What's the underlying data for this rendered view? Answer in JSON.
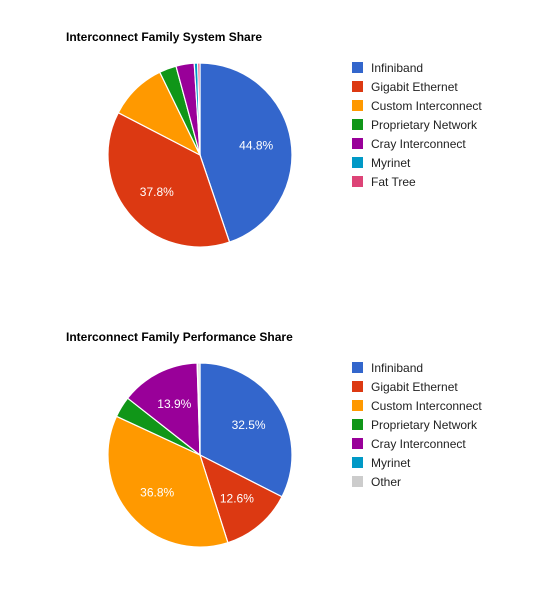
{
  "chart_data": [
    {
      "type": "pie",
      "title": "Interconnect Family System Share",
      "labels": [
        "Infiniband",
        "Gigabit Ethernet",
        "Custom Interconnect",
        "Proprietary Network",
        "Cray Interconnect",
        "Myrinet",
        "Fat Tree"
      ],
      "values": [
        44.8,
        37.8,
        10.2,
        3.0,
        3.2,
        0.6,
        0.4
      ],
      "value_labels": [
        "44.8%",
        "37.8%",
        "",
        "",
        "",
        "",
        ""
      ],
      "colors": [
        "#3366cc",
        "#dc3912",
        "#ff9900",
        "#109618",
        "#990099",
        "#0099c6",
        "#dd4477"
      ],
      "legend_position": "right"
    },
    {
      "type": "pie",
      "title": "Interconnect Family Performance Share",
      "labels": [
        "Infiniband",
        "Gigabit Ethernet",
        "Custom Interconnect",
        "Proprietary Network",
        "Cray Interconnect",
        "Myrinet",
        "Other"
      ],
      "values": [
        32.5,
        12.6,
        36.8,
        3.7,
        13.9,
        0.1,
        0.4
      ],
      "value_labels": [
        "32.5%",
        "12.6%",
        "36.8%",
        "",
        "13.9%",
        "",
        ""
      ],
      "colors": [
        "#3366cc",
        "#dc3912",
        "#ff9900",
        "#109618",
        "#990099",
        "#0099c6",
        "#cccccc"
      ],
      "legend_position": "right"
    }
  ]
}
